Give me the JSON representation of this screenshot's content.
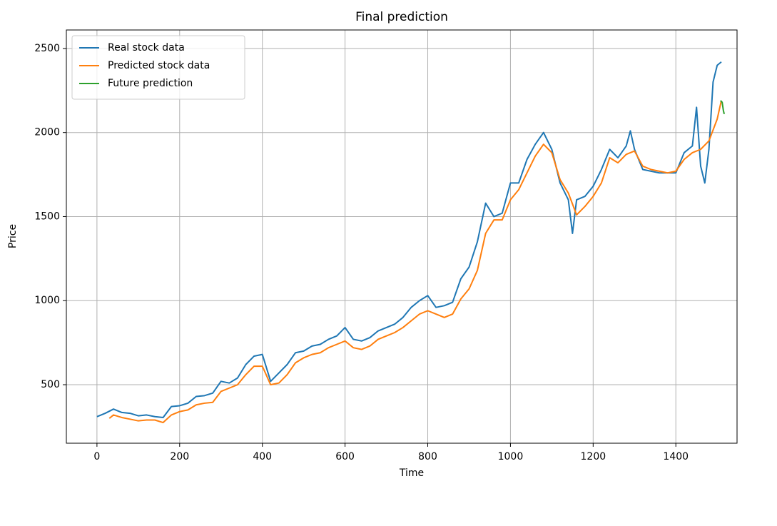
{
  "chart_data": {
    "type": "line",
    "title": "Final prediction",
    "x_label": "Time",
    "y_label": "Price",
    "xlim": [
      -74,
      1548
    ],
    "ylim": [
      152,
      2610
    ],
    "xticks": [
      0,
      200,
      400,
      600,
      800,
      1000,
      1200,
      1400
    ],
    "yticks": [
      500,
      1000,
      1500,
      2000,
      2500
    ],
    "grid": true,
    "legend": "upper left",
    "series": [
      {
        "name": "Real stock data",
        "color": "#1f77b4",
        "x": [
          0,
          20,
          40,
          60,
          80,
          100,
          120,
          140,
          160,
          180,
          200,
          220,
          240,
          260,
          280,
          300,
          320,
          340,
          360,
          380,
          400,
          420,
          440,
          460,
          480,
          500,
          520,
          540,
          560,
          580,
          600,
          620,
          640,
          660,
          680,
          700,
          720,
          740,
          760,
          780,
          800,
          820,
          840,
          860,
          880,
          900,
          920,
          940,
          960,
          980,
          1000,
          1020,
          1040,
          1060,
          1080,
          1100,
          1120,
          1140,
          1150,
          1160,
          1180,
          1200,
          1220,
          1240,
          1260,
          1280,
          1290,
          1300,
          1320,
          1340,
          1360,
          1380,
          1400,
          1420,
          1440,
          1450,
          1460,
          1470,
          1480,
          1490,
          1500,
          1510
        ],
        "values": [
          310,
          330,
          355,
          335,
          330,
          315,
          320,
          310,
          305,
          370,
          375,
          390,
          430,
          435,
          450,
          520,
          510,
          540,
          620,
          670,
          680,
          520,
          570,
          620,
          690,
          700,
          730,
          740,
          770,
          790,
          840,
          770,
          760,
          780,
          820,
          840,
          860,
          900,
          960,
          1000,
          1030,
          960,
          970,
          990,
          1130,
          1200,
          1350,
          1580,
          1500,
          1520,
          1700,
          1700,
          1840,
          1930,
          2000,
          1900,
          1700,
          1600,
          1400,
          1600,
          1620,
          1680,
          1780,
          1900,
          1850,
          1920,
          2010,
          1900,
          1780,
          1770,
          1760,
          1760,
          1760,
          1880,
          1920,
          2150,
          1800,
          1700,
          1900,
          2300,
          2400,
          2420
        ]
      },
      {
        "name": "Predicted stock data",
        "color": "#ff7f0e",
        "x": [
          30,
          40,
          60,
          80,
          100,
          120,
          140,
          160,
          180,
          200,
          220,
          240,
          260,
          280,
          300,
          320,
          340,
          360,
          380,
          400,
          420,
          440,
          460,
          480,
          500,
          520,
          540,
          560,
          580,
          600,
          620,
          640,
          660,
          680,
          700,
          720,
          740,
          760,
          780,
          800,
          820,
          840,
          860,
          880,
          900,
          920,
          940,
          960,
          980,
          1000,
          1020,
          1040,
          1060,
          1080,
          1100,
          1120,
          1140,
          1160,
          1180,
          1200,
          1220,
          1240,
          1260,
          1280,
          1300,
          1320,
          1340,
          1360,
          1380,
          1400,
          1420,
          1440,
          1460,
          1480,
          1500,
          1510
        ],
        "values": [
          300,
          320,
          305,
          295,
          285,
          290,
          290,
          275,
          320,
          340,
          350,
          380,
          390,
          395,
          460,
          480,
          500,
          560,
          610,
          610,
          500,
          510,
          560,
          630,
          660,
          680,
          690,
          720,
          740,
          760,
          720,
          710,
          730,
          770,
          790,
          810,
          840,
          880,
          920,
          940,
          920,
          900,
          920,
          1010,
          1070,
          1180,
          1400,
          1480,
          1480,
          1600,
          1660,
          1760,
          1860,
          1930,
          1880,
          1720,
          1640,
          1510,
          1560,
          1620,
          1700,
          1850,
          1820,
          1870,
          1890,
          1800,
          1780,
          1770,
          1760,
          1770,
          1840,
          1880,
          1900,
          1950,
          2080,
          2190
        ]
      },
      {
        "name": "Future prediction",
        "color": "#2ca02c",
        "x": [
          1508,
          1512,
          1515,
          1517
        ],
        "values": [
          2190,
          2180,
          2130,
          2110
        ]
      }
    ]
  }
}
